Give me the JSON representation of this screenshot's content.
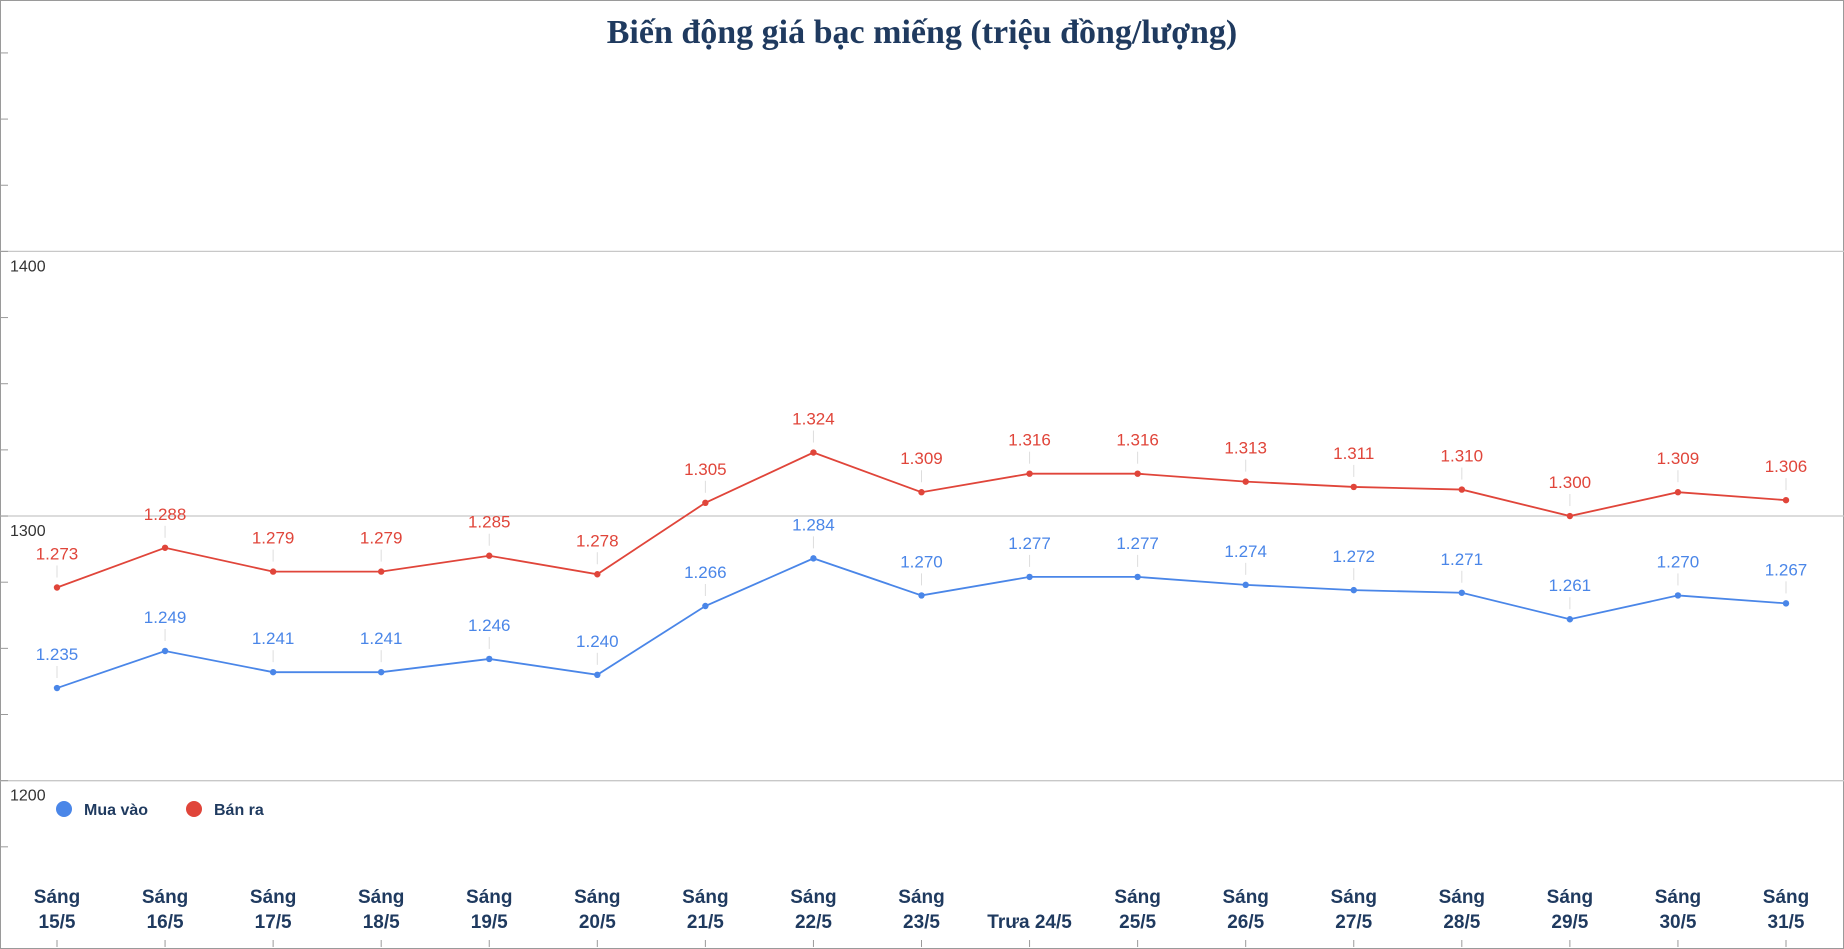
{
  "chart_data": {
    "type": "line",
    "title": "Biến động giá bạc miếng (triệu đồng/lượng)",
    "xlabel": "",
    "ylabel": "",
    "categories": [
      [
        "Sáng",
        "15/5"
      ],
      [
        "Sáng",
        "16/5"
      ],
      [
        "Sáng",
        "17/5"
      ],
      [
        "Sáng",
        "18/5"
      ],
      [
        "Sáng",
        "19/5"
      ],
      [
        "Sáng",
        "20/5"
      ],
      [
        "Sáng",
        "21/5"
      ],
      [
        "Sáng",
        "22/5"
      ],
      [
        "Sáng",
        "23/5"
      ],
      [
        "Trưa 24/5"
      ],
      [
        "Sáng",
        "25/5"
      ],
      [
        "Sáng",
        "26/5"
      ],
      [
        "Sáng",
        "27/5"
      ],
      [
        "Sáng",
        "28/5"
      ],
      [
        "Sáng",
        "29/5"
      ],
      [
        "Sáng",
        "30/5"
      ],
      [
        "Sáng",
        "31/5"
      ]
    ],
    "ylim": [
      1167,
      1495
    ],
    "yticks": [
      1200,
      1300,
      1400
    ],
    "grid": true,
    "legend_position": "bottom-left",
    "series": [
      {
        "name": "Mua vào",
        "color": "#4a86e8",
        "values": [
          1235,
          1249,
          1241,
          1241,
          1246,
          1240,
          1266,
          1284,
          1270,
          1277,
          1277,
          1274,
          1272,
          1271,
          1261,
          1270,
          1267
        ],
        "labels": [
          "1.235",
          "1.249",
          "1.241",
          "1.241",
          "1.246",
          "1.240",
          "1.266",
          "1.284",
          "1.270",
          "1.277",
          "1.277",
          "1.274",
          "1.272",
          "1.271",
          "1.261",
          "1.270",
          "1.267"
        ]
      },
      {
        "name": "Bán ra",
        "color": "#e0453a",
        "values": [
          1273,
          1288,
          1279,
          1279,
          1285,
          1278,
          1305,
          1324,
          1309,
          1316,
          1316,
          1313,
          1311,
          1310,
          1300,
          1309,
          1306
        ],
        "labels": [
          "1.273",
          "1.288",
          "1.279",
          "1.279",
          "1.285",
          "1.278",
          "1.305",
          "1.324",
          "1.309",
          "1.316",
          "1.316",
          "1.313",
          "1.311",
          "1.310",
          "1.300",
          "1.309",
          "1.306"
        ]
      }
    ]
  }
}
